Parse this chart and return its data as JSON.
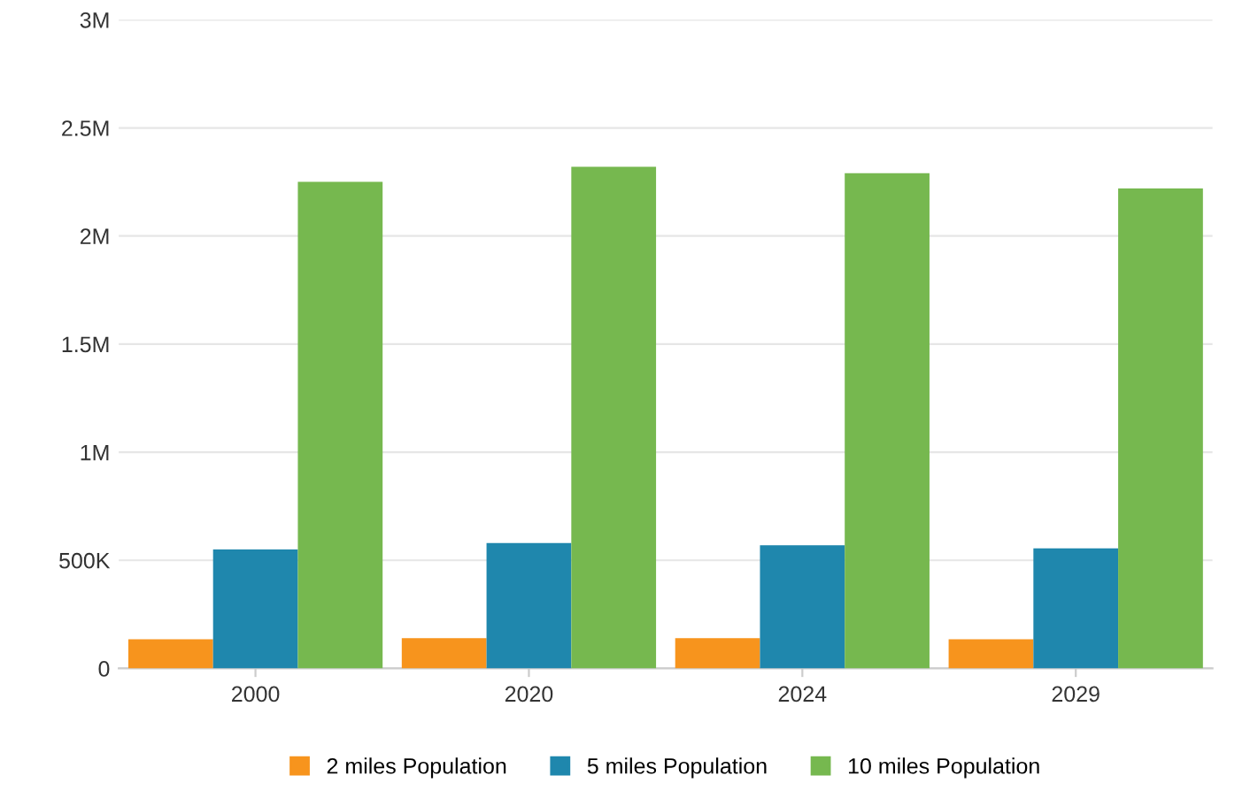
{
  "chart_data": {
    "type": "bar",
    "categories": [
      "2000",
      "2020",
      "2024",
      "2029"
    ],
    "series": [
      {
        "name": "2 miles Population",
        "color": "#f7941d",
        "values": [
          135000,
          140000,
          140000,
          135000
        ]
      },
      {
        "name": "5 miles Population",
        "color": "#1f87ad",
        "values": [
          550000,
          580000,
          570000,
          555000
        ]
      },
      {
        "name": "10 miles Population",
        "color": "#76b84f",
        "values": [
          2250000,
          2320000,
          2290000,
          2220000
        ]
      }
    ],
    "ylim": [
      0,
      3000000
    ],
    "yticks": [
      0,
      {
        "value": 500000,
        "label": "500K"
      },
      {
        "value": 1000000,
        "label": "1M"
      },
      {
        "value": 1500000,
        "label": "1.5M"
      },
      {
        "value": 2000000,
        "label": "2M"
      },
      {
        "value": 2500000,
        "label": "2.5M"
      },
      {
        "value": 3000000,
        "label": "3M"
      }
    ],
    "grid": "y",
    "legend": "bottom"
  }
}
